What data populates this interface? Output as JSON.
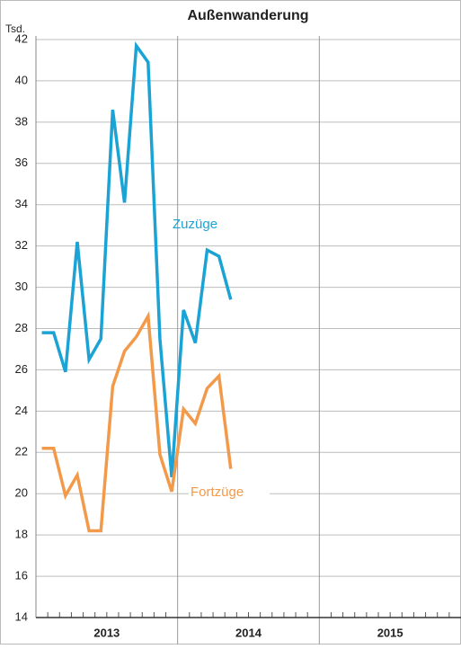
{
  "chart_data": {
    "type": "line",
    "title": "Außenwanderung",
    "y_label": "Tsd.",
    "categories": [
      null,
      null,
      null,
      null,
      null,
      null,
      null,
      null,
      null,
      null,
      null,
      null,
      null,
      null,
      null,
      null,
      null,
      null,
      null,
      null,
      null,
      null,
      null,
      null,
      null,
      null,
      null,
      null,
      null,
      null,
      null,
      null,
      null,
      null,
      null,
      null
    ],
    "year_labels": [
      "2013",
      "2014",
      "2015"
    ],
    "series": [
      {
        "name": "Zuzüge",
        "color": "#1aa3d4",
        "values": [
          27.8,
          27.8,
          25.9,
          32.2,
          26.5,
          27.5,
          38.6,
          34.1,
          41.7,
          40.9,
          27.5,
          20.8,
          28.9,
          27.3,
          31.8,
          31.5,
          29.4,
          null,
          null,
          null,
          null,
          null,
          null,
          null,
          null,
          null,
          null,
          null,
          null,
          null,
          null,
          null,
          null,
          null,
          null,
          null
        ]
      },
      {
        "name": "Fortzüge",
        "color": "#f39a4a",
        "values": [
          22.2,
          22.2,
          19.9,
          20.9,
          18.2,
          18.2,
          25.2,
          26.9,
          27.6,
          28.6,
          21.9,
          20.1,
          24.1,
          23.4,
          25.1,
          25.7,
          21.2,
          null,
          null,
          null,
          null,
          null,
          null,
          null,
          null,
          null,
          null,
          null,
          null,
          null,
          null,
          null,
          null,
          null,
          null,
          null
        ]
      }
    ],
    "ylim": [
      14,
      42
    ],
    "yticks": [
      14,
      16,
      18,
      20,
      22,
      24,
      26,
      28,
      30,
      32,
      34,
      36,
      38,
      40,
      42
    ],
    "grid": true
  }
}
